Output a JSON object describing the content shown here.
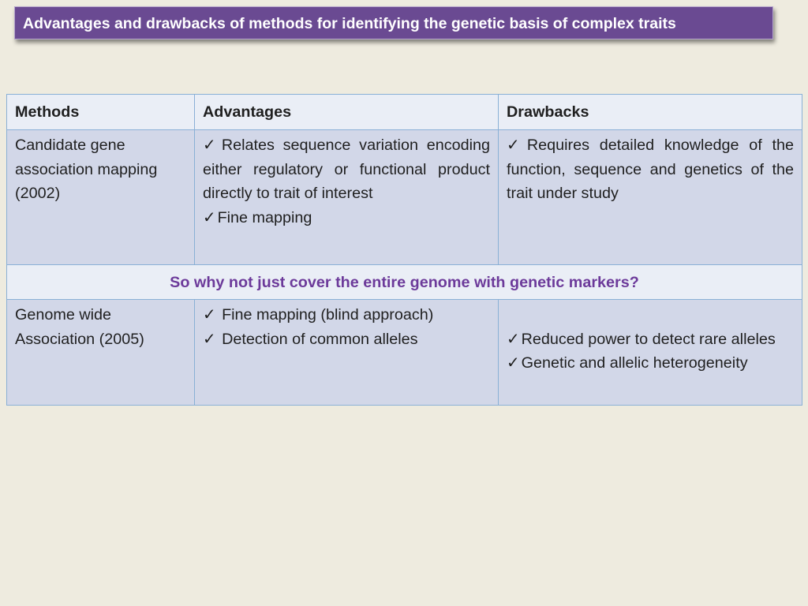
{
  "title": "Advantages and drawbacks of methods for identifying the genetic basis of complex traits",
  "table": {
    "headers": [
      "Methods",
      "Advantages",
      "Drawbacks"
    ],
    "row1": {
      "method": "Candidate gene association mapping (2002)",
      "advantages": [
        "Relates sequence variation encoding either regulatory or functional product directly to trait of interest",
        "Fine mapping"
      ],
      "drawbacks": [
        "Requires detailed knowledge of the function, sequence and genetics of the trait under study"
      ]
    },
    "question": "So why not just cover the entire genome with genetic markers?",
    "row2": {
      "method": "Genome wide Association (2005)",
      "advantages": [
        "Fine mapping (blind approach)",
        "Detection of common alleles"
      ],
      "drawbacks": [
        "Reduced power to detect rare alleles",
        "Genetic and allelic heterogeneity"
      ]
    }
  }
}
